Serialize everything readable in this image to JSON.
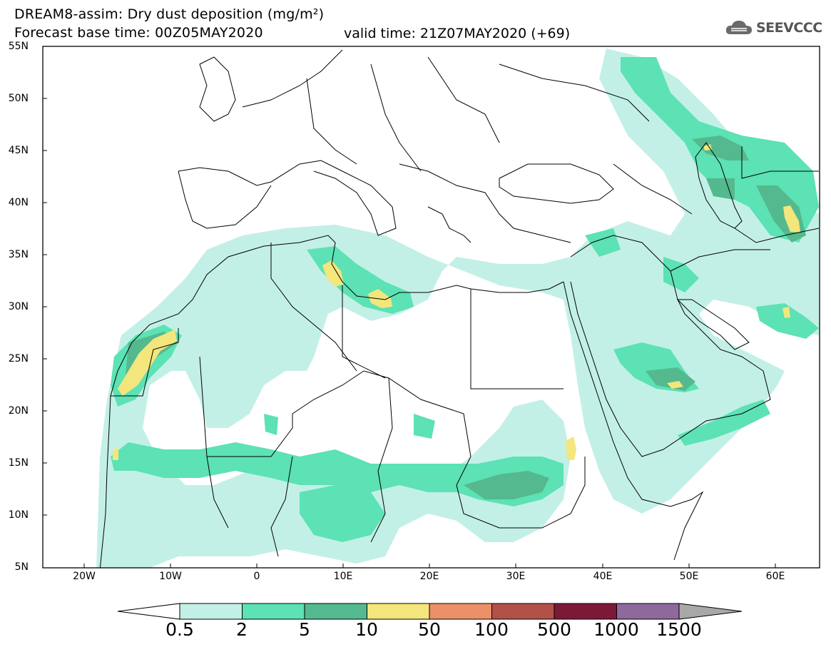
{
  "title_line1": "DREAM8-assim: Dry dust deposition (mg/m²)",
  "title_line2": "Forecast base time: 00Z05MAY2020",
  "valid_time": "valid time: 21Z07MAY2020 (+69)",
  "logo_text": "SEEVCCC",
  "logo_icon": "cloud-icon",
  "lat_labels": [
    "55N",
    "50N",
    "45N",
    "40N",
    "35N",
    "30N",
    "25N",
    "20N",
    "15N",
    "10N",
    "5N"
  ],
  "lon_labels": [
    "20W",
    "10W",
    "0",
    "10E",
    "20E",
    "30E",
    "40E",
    "50E",
    "60E"
  ],
  "colorbar": {
    "unit": "mg/m²",
    "levels": [
      "0.5",
      "2",
      "5",
      "10",
      "50",
      "100",
      "500",
      "1000",
      "1500"
    ],
    "colors": [
      "#c3f0e6",
      "#5ce2b4",
      "#54b98e",
      "#f3e67c",
      "#ec906a",
      "#b2514a",
      "#7c1937",
      "#8d6a9b"
    ],
    "under_color": "#ffffff",
    "over_color": "#a8a8a8"
  }
}
